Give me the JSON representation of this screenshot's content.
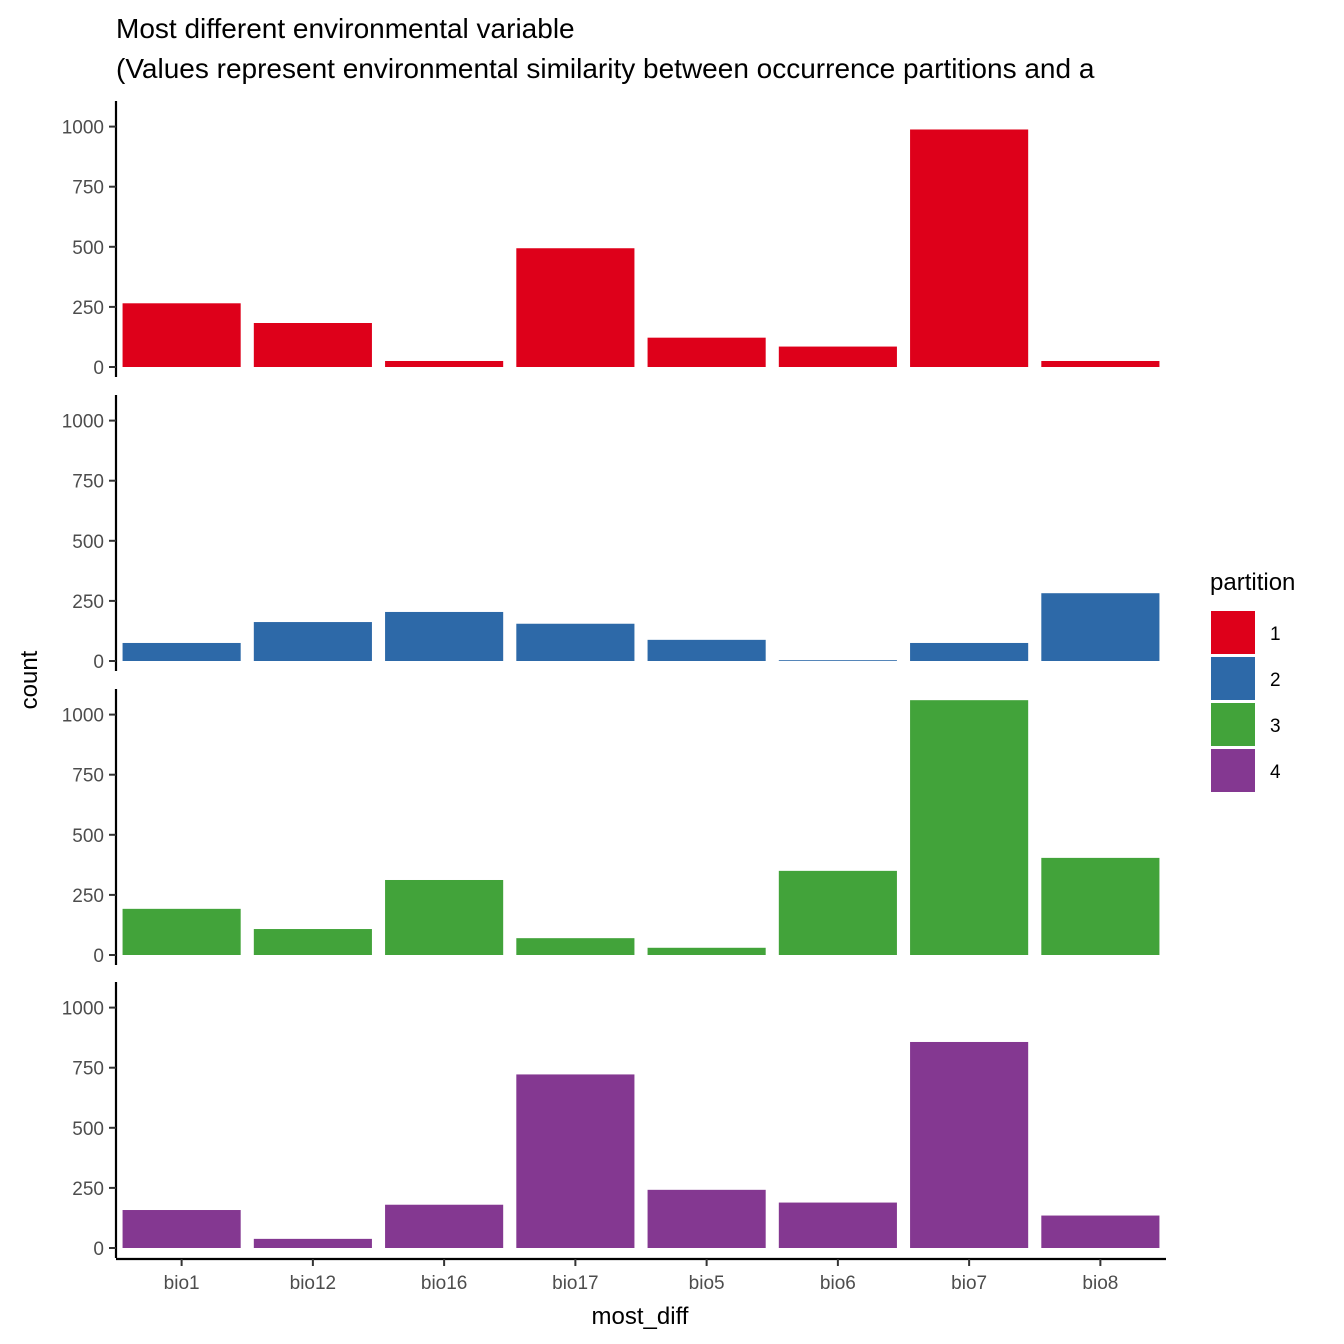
{
  "chart_data": {
    "type": "bar",
    "title": "Most different environmental variable",
    "subtitle": "(Values represent environmental similarity between occurrence partitions and a",
    "xlabel": "most_diff",
    "ylabel": "count",
    "categories": [
      "bio1",
      "bio12",
      "bio16",
      "bio17",
      "bio5",
      "bio6",
      "bio7",
      "bio8"
    ],
    "yticks": [
      0,
      250,
      500,
      750,
      1000
    ],
    "ylim": [
      0,
      1110
    ],
    "legend": {
      "title": "partition",
      "position": "right"
    },
    "grid": false,
    "series": [
      {
        "name": "1",
        "color": "#de001a",
        "values": [
          265,
          183,
          25,
          494,
          122,
          85,
          988,
          25
        ]
      },
      {
        "name": "2",
        "color": "#2d69a8",
        "values": [
          75,
          162,
          204,
          155,
          88,
          3,
          75,
          282
        ]
      },
      {
        "name": "3",
        "color": "#42a33a",
        "values": [
          192,
          108,
          312,
          70,
          30,
          350,
          1060,
          404
        ]
      },
      {
        "name": "4",
        "color": "#843891",
        "values": [
          158,
          38,
          180,
          722,
          242,
          189,
          857,
          135
        ]
      }
    ]
  }
}
